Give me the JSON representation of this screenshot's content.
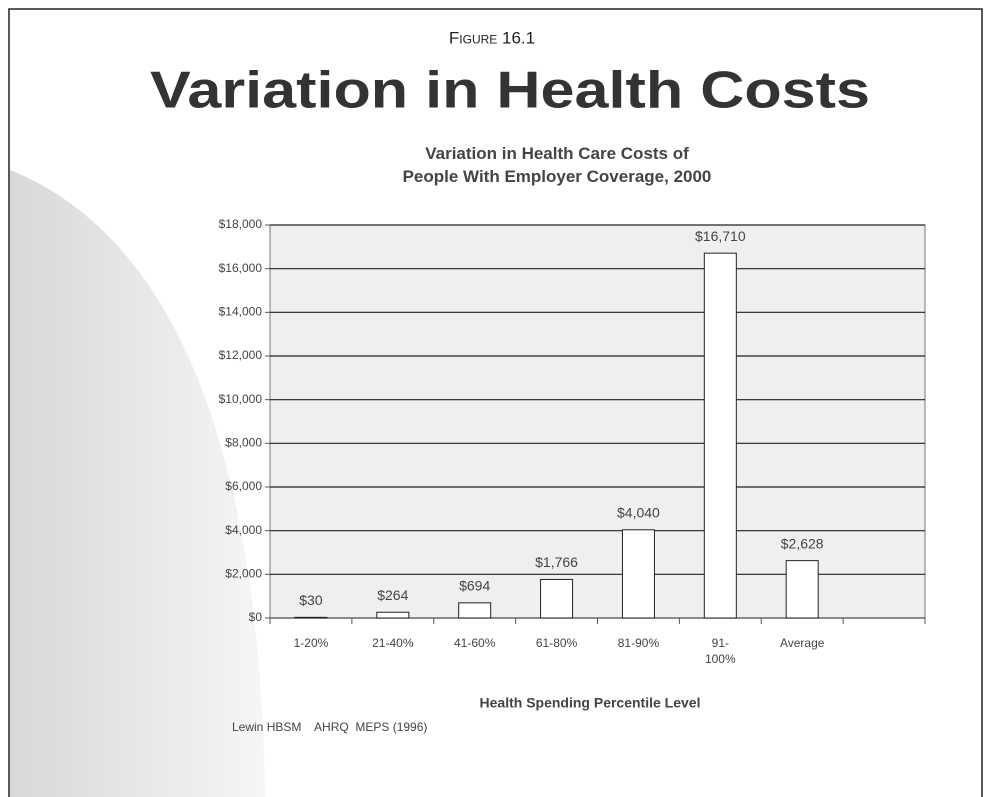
{
  "figure_label": "Figure 16.1",
  "slide_title": "Variation in Health Costs",
  "source": "Lewin HBSM    AHRQ  MEPS (1996)",
  "chart_data": {
    "type": "bar",
    "title": "Variation in Health Care Costs of\nPeople With Employer Coverage, 2000",
    "x_label": "Health Spending Percentile Level",
    "categories": [
      "1-20%",
      "21-40%",
      "41-60%",
      "61-80%",
      "81-90%",
      "91-\n100%",
      "Average",
      null
    ],
    "values": [
      30,
      264,
      694,
      1766,
      4040,
      16710,
      2628,
      null
    ],
    "value_labels": [
      "$30",
      "$264",
      "$694",
      "$1,766",
      "$4,040",
      "$16,710",
      "$2,628",
      null
    ],
    "color": "#ffffff",
    "ylim": [
      0,
      18000
    ],
    "yticks": [
      {
        "value": 0,
        "label": "$0"
      },
      {
        "value": 2000,
        "label": "$2,000"
      },
      {
        "value": 4000,
        "label": "$4,000"
      },
      {
        "value": 6000,
        "label": "$6,000"
      },
      {
        "value": 8000,
        "label": "$8,000"
      },
      {
        "value": 10000,
        "label": "$10,000"
      },
      {
        "value": 12000,
        "label": "$12,000"
      },
      {
        "value": 14000,
        "label": "$14,000"
      },
      {
        "value": 16000,
        "label": "$16,000"
      },
      {
        "value": 18000,
        "label": "$18,000"
      }
    ],
    "grid": true
  }
}
